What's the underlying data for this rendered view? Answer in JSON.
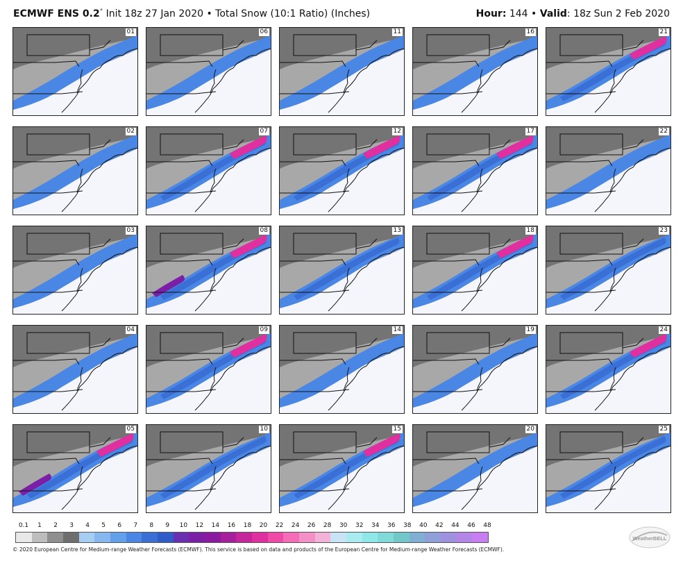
{
  "header": {
    "model": "ECMWF ENS 0.2",
    "degree": "°",
    "init": " Init 18z 27 Jan 2020 • Total Snow (10:1 Ratio) (Inches)",
    "hour_label": "Hour:",
    "hour_value": " 144 • ",
    "valid_label": "Valid",
    "valid_value": ": 18z Sun 2 Feb 2020"
  },
  "panels": [
    {
      "id": "01",
      "intensity": 1
    },
    {
      "id": "06",
      "intensity": 1
    },
    {
      "id": "11",
      "intensity": 1
    },
    {
      "id": "16",
      "intensity": 1
    },
    {
      "id": "21",
      "intensity": 3
    },
    {
      "id": "02",
      "intensity": 1
    },
    {
      "id": "07",
      "intensity": 3
    },
    {
      "id": "12",
      "intensity": 3
    },
    {
      "id": "17",
      "intensity": 3
    },
    {
      "id": "22",
      "intensity": 1
    },
    {
      "id": "03",
      "intensity": 0
    },
    {
      "id": "08",
      "intensity": 4
    },
    {
      "id": "13",
      "intensity": 2
    },
    {
      "id": "18",
      "intensity": 3
    },
    {
      "id": "23",
      "intensity": 2
    },
    {
      "id": "04",
      "intensity": 1
    },
    {
      "id": "09",
      "intensity": 3
    },
    {
      "id": "14",
      "intensity": 1
    },
    {
      "id": "19",
      "intensity": 1
    },
    {
      "id": "24",
      "intensity": 3
    },
    {
      "id": "05",
      "intensity": 4
    },
    {
      "id": "10",
      "intensity": 2
    },
    {
      "id": "15",
      "intensity": 3
    },
    {
      "id": "20",
      "intensity": 1
    },
    {
      "id": "25",
      "intensity": 2
    }
  ],
  "colorbar": {
    "labels": [
      "0.1",
      "1",
      "2",
      "3",
      "4",
      "5",
      "6",
      "7",
      "8",
      "9",
      "10",
      "12",
      "14",
      "16",
      "18",
      "20",
      "22",
      "24",
      "26",
      "28",
      "30",
      "32",
      "34",
      "36",
      "38",
      "40",
      "42",
      "44",
      "46",
      "48"
    ],
    "colors": [
      "#e8e8e8",
      "#bdbdbd",
      "#8f8f8f",
      "#6e6e6e",
      "#a6cdf2",
      "#86b8ef",
      "#63a0ea",
      "#4a86e3",
      "#3a6fd6",
      "#2f5cc8",
      "#6a2fb0",
      "#7a1fa6",
      "#8b1aa0",
      "#a61e9b",
      "#c4259b",
      "#e0309f",
      "#f04aa8",
      "#f56cb8",
      "#f58fc8",
      "#f3b2d8",
      "#c8e4f4",
      "#a8ecf2",
      "#8ee8ea",
      "#7fdad8",
      "#72c8c8",
      "#7fb0d4",
      "#8f9fda",
      "#a091e0",
      "#b486e8",
      "#c87ef0"
    ]
  },
  "copyright": "© 2020 European Centre for Medium-range Weather Forecasts (ECMWF). This service is based on data and products of the European Centre for Medium-range Weather Forecasts (ECMWF).",
  "logo_text": "WeatherBELL"
}
